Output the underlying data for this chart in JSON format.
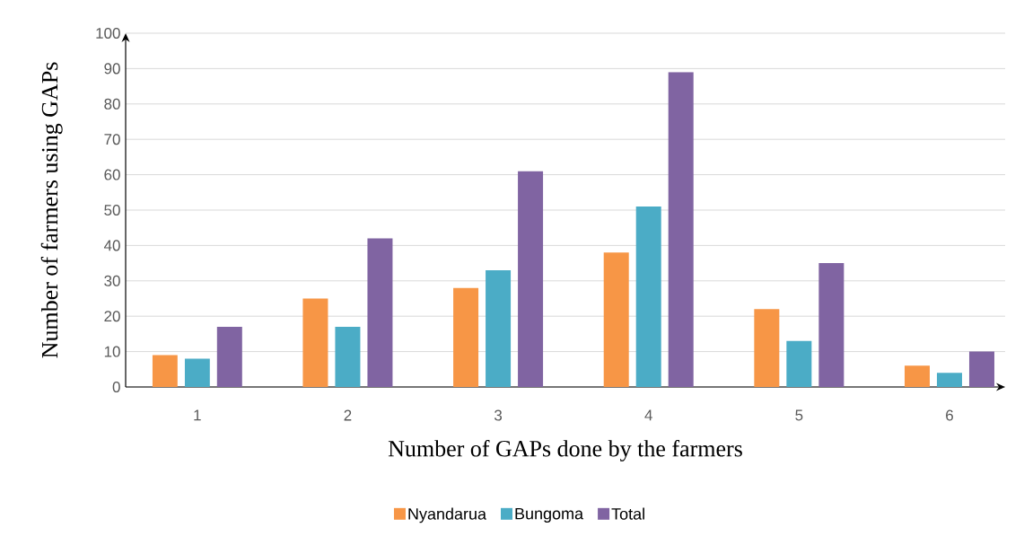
{
  "chart_data": {
    "type": "bar",
    "xlabel": "Number of GAPs done by the farmers",
    "ylabel": "Number of farmers using GAPs",
    "categories": [
      "1",
      "2",
      "3",
      "4",
      "5",
      "6"
    ],
    "series": [
      {
        "name": "Nyandarua",
        "color": "#f79646",
        "values": [
          9,
          25,
          28,
          38,
          22,
          6
        ]
      },
      {
        "name": "Bungoma",
        "color": "#4bacc6",
        "values": [
          8,
          17,
          33,
          51,
          13,
          4
        ]
      },
      {
        "name": "Total",
        "color": "#8064a2",
        "values": [
          17,
          42,
          61,
          89,
          35,
          10
        ]
      }
    ],
    "ylim": [
      0,
      100
    ],
    "yticks": [
      0,
      10,
      20,
      30,
      40,
      50,
      60,
      70,
      80,
      90,
      100
    ],
    "grid": "y",
    "legend": "bottom"
  }
}
